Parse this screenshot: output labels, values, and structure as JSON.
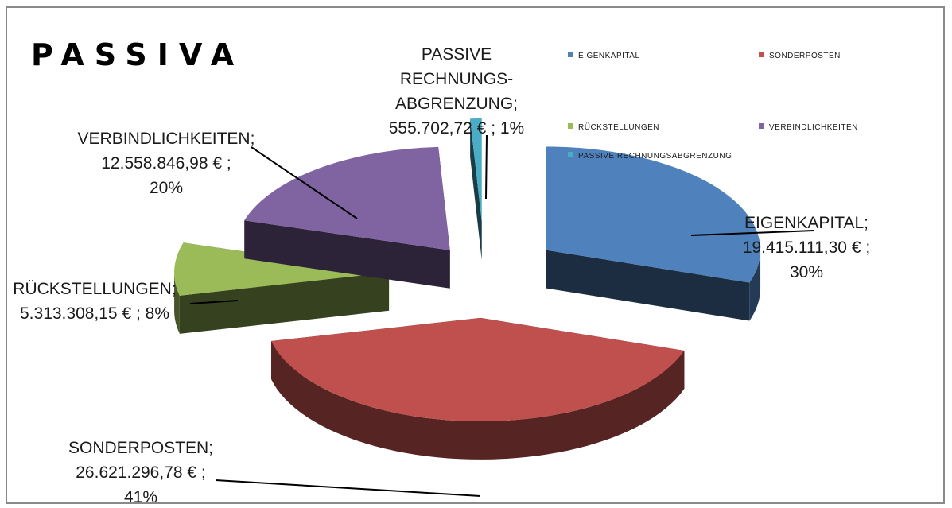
{
  "chart_data": {
    "type": "pie",
    "title": "PASSIVA",
    "slices": [
      {
        "name": "EIGENKAPITAL",
        "value": 19415111.3,
        "percent": 30,
        "color": "#4f81bd",
        "label": [
          "EIGENKAPITAL;",
          "19.415.111,30 € ;",
          "30%"
        ]
      },
      {
        "name": "SONDERPOSTEN",
        "value": 26621296.78,
        "percent": 41,
        "color": "#c0504d",
        "label": [
          "SONDERPOSTEN;",
          "26.621.296,78 € ;",
          "41%"
        ]
      },
      {
        "name": "RÜCKSTELLUNGEN",
        "value": 5313308.15,
        "percent": 8,
        "color": "#9bbb59",
        "label": [
          "RÜCKSTELLUNGEN;",
          "5.313.308,15 € ; 8%"
        ]
      },
      {
        "name": "VERBINDLICHKEITEN",
        "value": 12558846.98,
        "percent": 20,
        "color": "#8064a2",
        "label": [
          "VERBINDLICHKEITEN;",
          "12.558.846,98 € ;",
          "20%"
        ]
      },
      {
        "name": "PASSIVE RECHNUNGSABGRENZUNG",
        "value": 555702.72,
        "percent": 1,
        "color": "#4bacc6",
        "label": [
          "PASSIVE",
          "RECHNUNGS-",
          "ABGRENZUNG;",
          "555.702,72 € ; 1%"
        ]
      }
    ],
    "legend": {
      "placement": "top-right",
      "entries": [
        "EIGENKAPITAL",
        "SONDERPOSTEN",
        "RÜCKSTELLUNGEN",
        "VERBINDLICHKEITEN",
        "PASSIVE RECHNUNGSABGRENZUNG"
      ]
    },
    "exploded": true,
    "three_d": true
  }
}
